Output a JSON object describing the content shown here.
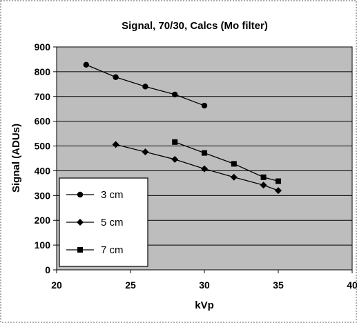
{
  "chart_data": {
    "type": "line",
    "title": "Signal, 70/30, Calcs (Mo filter)",
    "xlabel": "kVp",
    "ylabel": "Signal (ADUs)",
    "xlim": [
      20,
      40
    ],
    "ylim": [
      0,
      900
    ],
    "x_ticks": [
      "20",
      "25",
      "30",
      "35",
      "40"
    ],
    "y_ticks": [
      "0",
      "100",
      "200",
      "300",
      "400",
      "500",
      "600",
      "700",
      "800",
      "900"
    ],
    "grid": "horizontal",
    "legend_position": "bottom-left",
    "series": [
      {
        "name": "3 cm",
        "marker": "circle",
        "x": [
          22,
          24,
          26,
          28,
          30
        ],
        "y": [
          828,
          778,
          740,
          708,
          663
        ]
      },
      {
        "name": "5 cm",
        "marker": "diamond",
        "x": [
          24,
          26,
          28,
          30,
          32,
          34,
          35
        ],
        "y": [
          506,
          476,
          446,
          408,
          374,
          342,
          320
        ]
      },
      {
        "name": "7 cm",
        "marker": "square",
        "x": [
          28,
          30,
          32,
          34,
          35
        ],
        "y": [
          516,
          472,
          428,
          374,
          358
        ]
      }
    ],
    "colors": {
      "line": "#000000",
      "plot_background": "#bdbdbd",
      "gridline": "#000000"
    }
  }
}
